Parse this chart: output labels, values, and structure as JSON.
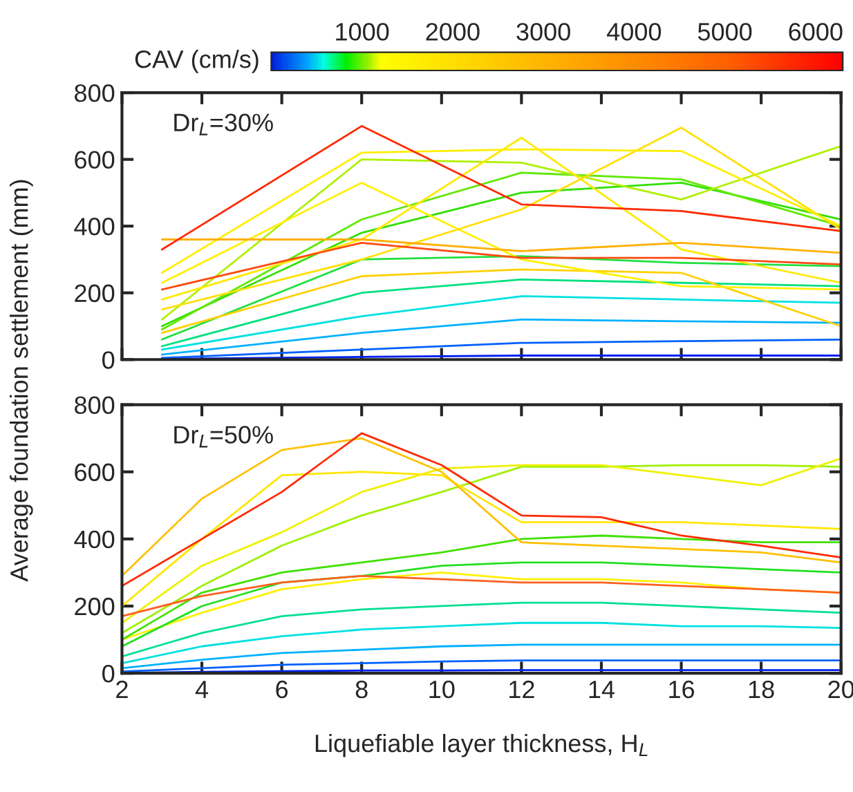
{
  "chart_data": [
    {
      "type": "line",
      "annotations": [
        "Dr$_{L}$=30%"
      ],
      "ylabel": "Average foundation settlement (mm)",
      "clabel": "CAV (cm/s)",
      "clim": [
        0,
        6300
      ],
      "cticks": [
        1000,
        2000,
        3000,
        4000,
        5000,
        6000
      ],
      "xlim": [
        2,
        20
      ],
      "xticks": [
        2,
        4,
        6,
        8,
        10,
        12,
        14,
        16,
        18,
        20
      ],
      "ylim": [
        0,
        800
      ],
      "yticks": [
        0,
        200,
        400,
        600,
        800
      ],
      "tick_labels": "y",
      "x": [
        3,
        8,
        12,
        16,
        20
      ],
      "series": [
        {
          "color": "#0020f0",
          "values": [
            2,
            8,
            12,
            12,
            12
          ]
        },
        {
          "color": "#0060ff",
          "values": [
            5,
            30,
            50,
            55,
            60
          ]
        },
        {
          "color": "#00b0ff",
          "values": [
            15,
            80,
            120,
            115,
            110
          ]
        },
        {
          "color": "#00e0e0",
          "values": [
            30,
            130,
            190,
            180,
            170
          ]
        },
        {
          "color": "#00e080",
          "values": [
            40,
            200,
            240,
            230,
            220
          ]
        },
        {
          "color": "#20e040",
          "values": [
            60,
            300,
            310,
            290,
            280
          ]
        },
        {
          "color": "#ffd000",
          "values": [
            80,
            250,
            270,
            260,
            100
          ]
        },
        {
          "color": "#30e000",
          "values": [
            100,
            380,
            500,
            530,
            420
          ]
        },
        {
          "color": "#60e800",
          "values": [
            90,
            420,
            560,
            540,
            400
          ]
        },
        {
          "color": "#b0f000",
          "values": [
            120,
            600,
            590,
            480,
            640
          ]
        },
        {
          "color": "#fff000",
          "values": [
            230,
            530,
            300,
            220,
            210
          ]
        },
        {
          "color": "#ffe000",
          "values": [
            150,
            300,
            450,
            695,
            390
          ]
        },
        {
          "color": "#ffe800",
          "values": [
            180,
            360,
            665,
            330,
            230
          ]
        },
        {
          "color": "#ffee00",
          "values": [
            260,
            620,
            630,
            625,
            400
          ]
        },
        {
          "color": "#ffb000",
          "values": [
            360,
            360,
            325,
            350,
            320
          ]
        },
        {
          "color": "#ff4a10",
          "values": [
            210,
            350,
            305,
            305,
            285
          ]
        },
        {
          "color": "#ff2a00",
          "values": [
            330,
            700,
            465,
            445,
            385
          ]
        }
      ]
    },
    {
      "type": "line",
      "annotations": [
        "Dr$_{L}$=50%"
      ],
      "xlabel": "Liquefiable layer thickness, H$_{L}$",
      "xlim": [
        2,
        20
      ],
      "xticks": [
        2,
        4,
        6,
        8,
        10,
        12,
        14,
        16,
        18,
        20
      ],
      "ylim": [
        0,
        800
      ],
      "yticks": [
        0,
        200,
        400,
        600,
        800
      ],
      "x": [
        2,
        4,
        6,
        8,
        10,
        12,
        14,
        16,
        18,
        20
      ],
      "series": [
        {
          "color": "#0020f0",
          "values": [
            1,
            4,
            6,
            8,
            8,
            9,
            9,
            9,
            9,
            9
          ]
        },
        {
          "color": "#0060ff",
          "values": [
            5,
            15,
            25,
            30,
            35,
            38,
            38,
            38,
            38,
            38
          ]
        },
        {
          "color": "#00b0ff",
          "values": [
            15,
            40,
            60,
            70,
            80,
            85,
            85,
            85,
            85,
            85
          ]
        },
        {
          "color": "#00e0e0",
          "values": [
            30,
            80,
            110,
            130,
            140,
            150,
            150,
            140,
            140,
            135
          ]
        },
        {
          "color": "#00e090",
          "values": [
            50,
            120,
            170,
            190,
            200,
            210,
            210,
            200,
            190,
            180
          ]
        },
        {
          "color": "#fff000",
          "values": [
            100,
            180,
            250,
            280,
            300,
            280,
            280,
            270,
            250,
            240
          ]
        },
        {
          "color": "#20e020",
          "values": [
            80,
            200,
            270,
            290,
            320,
            330,
            330,
            320,
            310,
            300
          ]
        },
        {
          "color": "#40e000",
          "values": [
            100,
            240,
            300,
            330,
            360,
            400,
            410,
            400,
            390,
            390
          ]
        },
        {
          "color": "#a0f000",
          "values": [
            120,
            260,
            380,
            470,
            540,
            615,
            615,
            620,
            620,
            615
          ]
        },
        {
          "color": "#f0f000",
          "values": [
            150,
            320,
            420,
            540,
            610,
            620,
            620,
            590,
            560,
            640
          ]
        },
        {
          "color": "#ffe600",
          "values": [
            200,
            400,
            590,
            600,
            590,
            450,
            450,
            450,
            440,
            430
          ]
        },
        {
          "color": "#ffc000",
          "values": [
            290,
            520,
            665,
            700,
            600,
            390,
            380,
            370,
            360,
            330
          ]
        },
        {
          "color": "#ff6020",
          "values": [
            170,
            230,
            270,
            290,
            280,
            270,
            270,
            260,
            250,
            240
          ]
        },
        {
          "color": "#ff2a00",
          "values": [
            260,
            400,
            540,
            715,
            620,
            470,
            465,
            410,
            380,
            345
          ]
        }
      ]
    }
  ]
}
